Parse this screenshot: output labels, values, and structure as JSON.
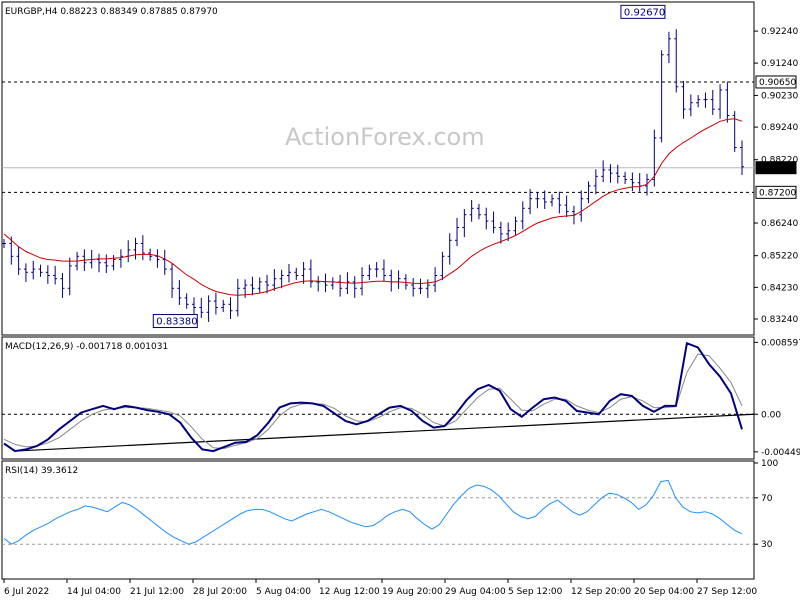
{
  "chart_data": [
    {
      "type": "line",
      "subtype": "candlestick-bars",
      "title": "EURGBP,H4  0.88223 0.88349 0.87885 0.87970",
      "watermark": "ActionForex.com",
      "ylim": [
        0.8274,
        0.9315
      ],
      "price_ticks": [
        "0.92240",
        "0.91240",
        "0.90230",
        "0.89240",
        "0.88220",
        "0.86240",
        "0.85220",
        "0.84230",
        "0.83240"
      ],
      "levels": [
        {
          "value": 0.9065,
          "label": "0.90650",
          "style": "dashed"
        },
        {
          "value": 0.8797,
          "label": "0.87970",
          "style": "grey-current"
        },
        {
          "value": 0.872,
          "label": "0.87200",
          "style": "dashed"
        }
      ],
      "extremes": [
        {
          "label": "0.92670",
          "value": 0.9267
        },
        {
          "label": "0.83380",
          "value": 0.8338
        }
      ],
      "x_labels": [
        "6 Jul 2022",
        "14 Jul 04:00",
        "21 Jul 12:00",
        "28 Jul 20:00",
        "5 Aug 04:00",
        "12 Aug 12:00",
        "19 Aug 20:00",
        "29 Aug 04:00",
        "5 Sep 12:00",
        "12 Sep 20:00",
        "20 Sep 04:00",
        "27 Sep 12:00"
      ],
      "series": [
        {
          "role": "price",
          "color": "#000080",
          "values": [
            0.856,
            0.852,
            0.848,
            0.847,
            0.848,
            0.847,
            0.846,
            0.845,
            0.842,
            0.849,
            0.852,
            0.85,
            0.851,
            0.85,
            0.849,
            0.851,
            0.852,
            0.854,
            0.856,
            0.853,
            0.852,
            0.851,
            0.848,
            0.842,
            0.839,
            0.837,
            0.836,
            0.8345,
            0.838,
            0.836,
            0.837,
            0.835,
            0.842,
            0.843,
            0.842,
            0.844,
            0.843,
            0.845,
            0.846,
            0.847,
            0.846,
            0.848,
            0.844,
            0.844,
            0.843,
            0.844,
            0.842,
            0.844,
            0.842,
            0.846,
            0.848,
            0.848,
            0.846,
            0.844,
            0.845,
            0.843,
            0.842,
            0.842,
            0.843,
            0.846,
            0.852,
            0.857,
            0.861,
            0.865,
            0.867,
            0.865,
            0.863,
            0.861,
            0.859,
            0.86,
            0.863,
            0.867,
            0.87,
            0.87,
            0.869,
            0.87,
            0.868,
            0.866,
            0.865,
            0.87,
            0.874,
            0.877,
            0.879,
            0.878,
            0.877,
            0.876,
            0.875,
            0.874,
            0.876,
            0.889,
            0.915,
            0.92,
            0.905,
            0.898,
            0.9,
            0.901,
            0.901,
            0.898,
            0.904,
            0.896,
            0.886,
            0.88
          ]
        },
        {
          "role": "moving-average",
          "color": "#cc0000",
          "values": [
            0.859,
            0.857,
            0.855,
            0.8535,
            0.8525,
            0.8515,
            0.851,
            0.8508,
            0.8505,
            0.8505,
            0.8505,
            0.8508,
            0.851,
            0.8512,
            0.8512,
            0.8514,
            0.8516,
            0.852,
            0.8525,
            0.8526,
            0.8526,
            0.8522,
            0.8512,
            0.8498,
            0.848,
            0.8462,
            0.8448,
            0.8432,
            0.842,
            0.841,
            0.8405,
            0.84,
            0.8398,
            0.84,
            0.8402,
            0.8405,
            0.841,
            0.8418,
            0.8425,
            0.8432,
            0.8438,
            0.8442,
            0.8443,
            0.8442,
            0.8441,
            0.844,
            0.8438,
            0.8437,
            0.8436,
            0.8438,
            0.844,
            0.8442,
            0.8442,
            0.844,
            0.844,
            0.8438,
            0.8436,
            0.8435,
            0.8437,
            0.844,
            0.845,
            0.8465,
            0.848,
            0.85,
            0.852,
            0.8535,
            0.8548,
            0.8558,
            0.8566,
            0.8575,
            0.8585,
            0.8598,
            0.8612,
            0.8624,
            0.8632,
            0.864,
            0.8644,
            0.8646,
            0.8648,
            0.866,
            0.8676,
            0.8692,
            0.8708,
            0.872,
            0.8728,
            0.8733,
            0.8737,
            0.8738,
            0.8745,
            0.877,
            0.881,
            0.884,
            0.886,
            0.8876,
            0.889,
            0.8905,
            0.8918,
            0.893,
            0.8942,
            0.8948,
            0.895,
            0.8942
          ]
        }
      ]
    },
    {
      "type": "line",
      "title": "MACD(12,26,9) -0.001718 0.001031",
      "ylim": [
        -0.00535,
        0.009
      ],
      "y_ticks": [
        "0.008597",
        "0.00",
        "-0.004491"
      ],
      "series": [
        {
          "role": "macd",
          "color": "#000080",
          "values": [
            -0.0035,
            -0.0044,
            -0.0042,
            -0.0038,
            -0.003,
            -0.0018,
            -0.0008,
            0.0002,
            0.0006,
            0.001,
            0.0006,
            0.001,
            0.0008,
            0.0005,
            0.0003,
            0.0,
            -0.001,
            -0.0028,
            -0.0042,
            -0.0044,
            -0.0039,
            -0.0034,
            -0.0033,
            -0.0025,
            -0.001,
            0.0008,
            0.0013,
            0.0014,
            0.0013,
            0.001,
            0.0001,
            -0.0008,
            -0.0012,
            -0.0008,
            0.0,
            0.0008,
            0.001,
            0.0004,
            -0.0008,
            -0.0016,
            -0.0014,
            0.0,
            0.0017,
            0.003,
            0.0035,
            0.0028,
            0.0006,
            -0.0003,
            0.0008,
            0.0018,
            0.002,
            0.0016,
            0.0004,
            0.0002,
            0.0,
            0.0016,
            0.0024,
            0.0022,
            0.001,
            0.0003,
            0.001,
            0.001,
            0.0085,
            0.008,
            0.006,
            0.0045,
            0.0025,
            -0.0018
          ]
        },
        {
          "role": "signal",
          "color": "#888888",
          "values": [
            -0.003,
            -0.0036,
            -0.0039,
            -0.0038,
            -0.0034,
            -0.0028,
            -0.0018,
            -0.0008,
            0.0,
            0.0005,
            0.0007,
            0.0008,
            0.0008,
            0.0007,
            0.0005,
            0.0003,
            -0.0002,
            -0.0015,
            -0.003,
            -0.004,
            -0.0041,
            -0.0037,
            -0.0034,
            -0.0029,
            -0.0018,
            -0.0002,
            0.0008,
            0.0012,
            0.0013,
            0.0012,
            0.0007,
            -0.0002,
            -0.0008,
            -0.0009,
            -0.0004,
            0.0003,
            0.0008,
            0.0007,
            0.0,
            -0.001,
            -0.0014,
            -0.0008,
            0.0006,
            0.002,
            0.003,
            0.0031,
            0.0018,
            0.0005,
            0.0004,
            0.0012,
            0.0018,
            0.0018,
            0.001,
            0.0005,
            0.0002,
            0.0008,
            0.0018,
            0.0021,
            0.0016,
            0.0008,
            0.0008,
            0.0009,
            0.005,
            0.0072,
            0.007,
            0.0055,
            0.0038,
            0.001
          ]
        }
      ]
    },
    {
      "type": "line",
      "title": "RSI(14) 39.3612",
      "ylim": [
        0,
        100
      ],
      "y_ticks": [
        "100",
        "70",
        "30"
      ],
      "levels": [
        70,
        30
      ],
      "series": [
        {
          "role": "rsi",
          "color": "#1e90ff",
          "values": [
            35,
            30,
            33,
            38,
            42,
            45,
            48,
            52,
            55,
            58,
            60,
            63,
            62,
            60,
            58,
            62,
            66,
            64,
            60,
            55,
            50,
            45,
            40,
            36,
            33,
            30,
            32,
            36,
            40,
            44,
            48,
            52,
            56,
            59,
            60,
            60,
            58,
            55,
            52,
            50,
            53,
            56,
            58,
            60,
            58,
            55,
            52,
            49,
            47,
            45,
            46,
            50,
            55,
            58,
            60,
            58,
            52,
            47,
            43,
            47,
            56,
            65,
            72,
            78,
            81,
            80,
            77,
            72,
            65,
            58,
            54,
            52,
            54,
            60,
            65,
            68,
            63,
            58,
            55,
            58,
            64,
            70,
            74,
            73,
            70,
            66,
            60,
            64,
            72,
            84,
            85,
            70,
            62,
            58,
            57,
            58,
            56,
            52,
            47,
            42,
            39
          ]
        }
      ]
    }
  ]
}
